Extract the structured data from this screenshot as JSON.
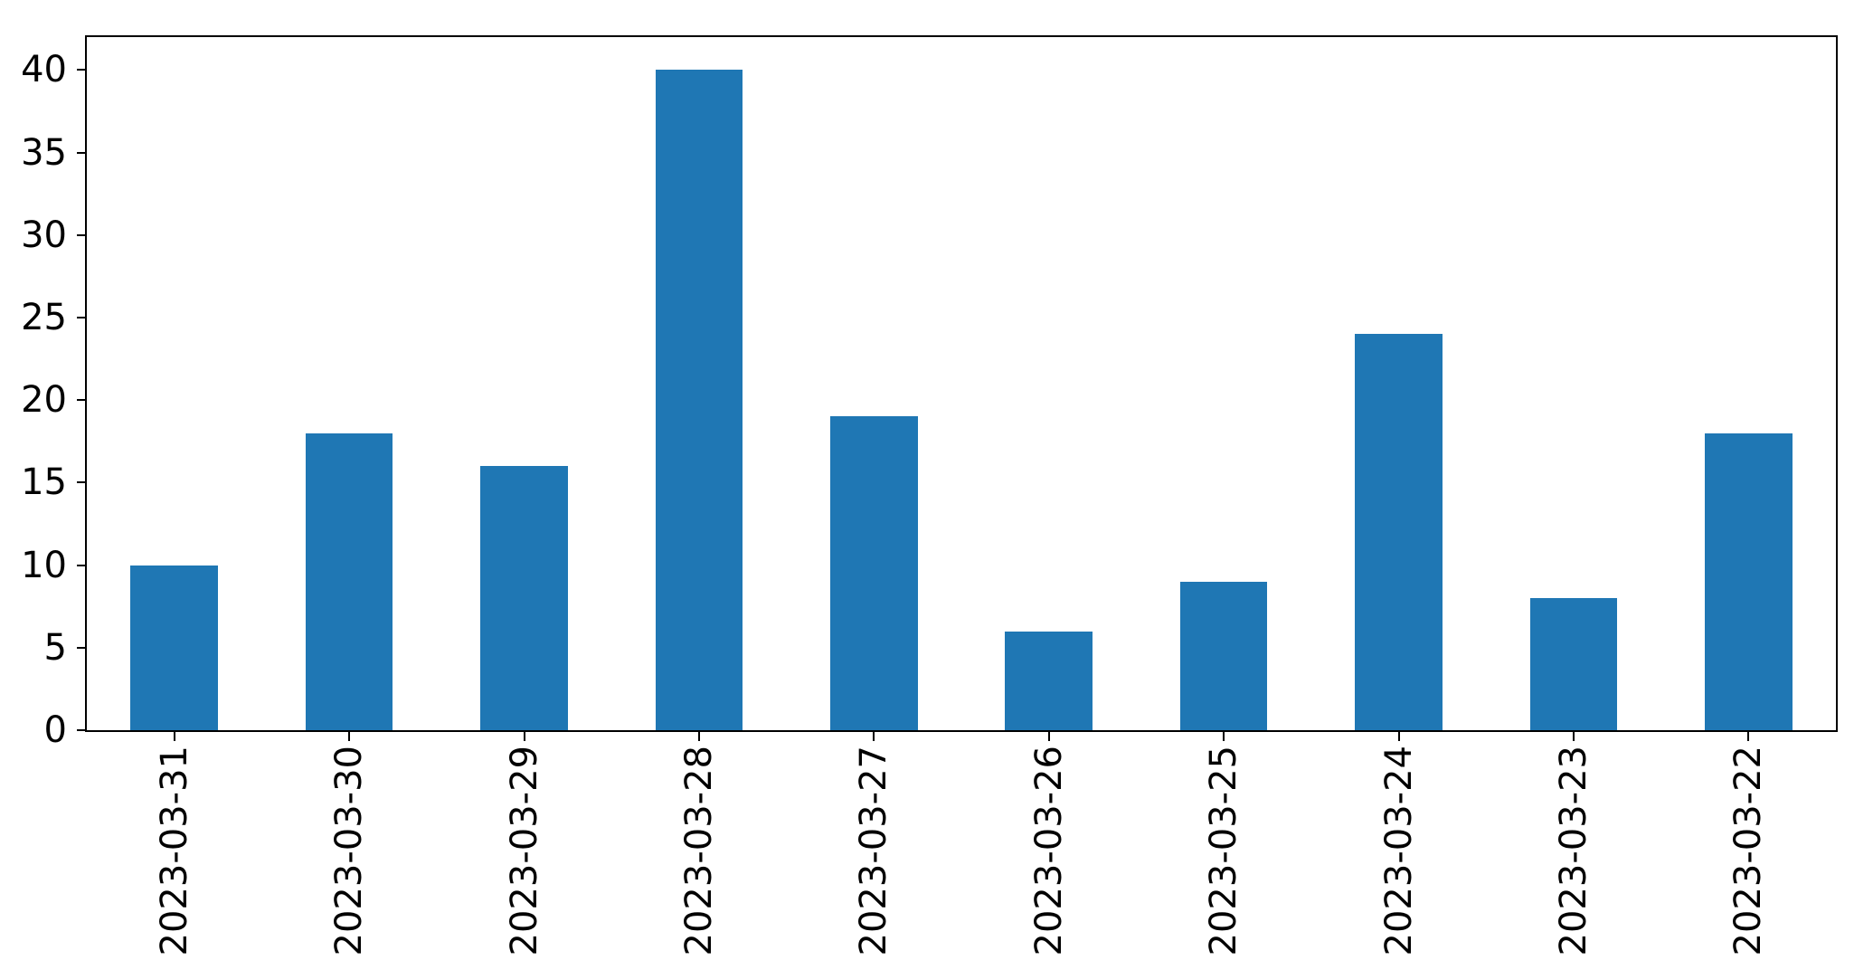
{
  "chart_data": {
    "type": "bar",
    "categories": [
      "2023-03-31",
      "2023-03-30",
      "2023-03-29",
      "2023-03-28",
      "2023-03-27",
      "2023-03-26",
      "2023-03-25",
      "2023-03-24",
      "2023-03-23",
      "2023-03-22"
    ],
    "values": [
      10,
      18,
      16,
      40,
      19,
      6,
      9,
      24,
      8,
      18
    ],
    "title": "",
    "xlabel": "",
    "ylabel": "",
    "ylim": [
      0,
      42
    ],
    "yticks": [
      0,
      5,
      10,
      15,
      20,
      25,
      30,
      35,
      40
    ],
    "x_tick_rotation": 90,
    "bar_color": "#1f77b4",
    "spine_color": "#000000",
    "tick_color": "#000000",
    "background_color": "#ffffff",
    "grid": false,
    "legend_position": "none",
    "bar_relative_width": 0.5
  }
}
